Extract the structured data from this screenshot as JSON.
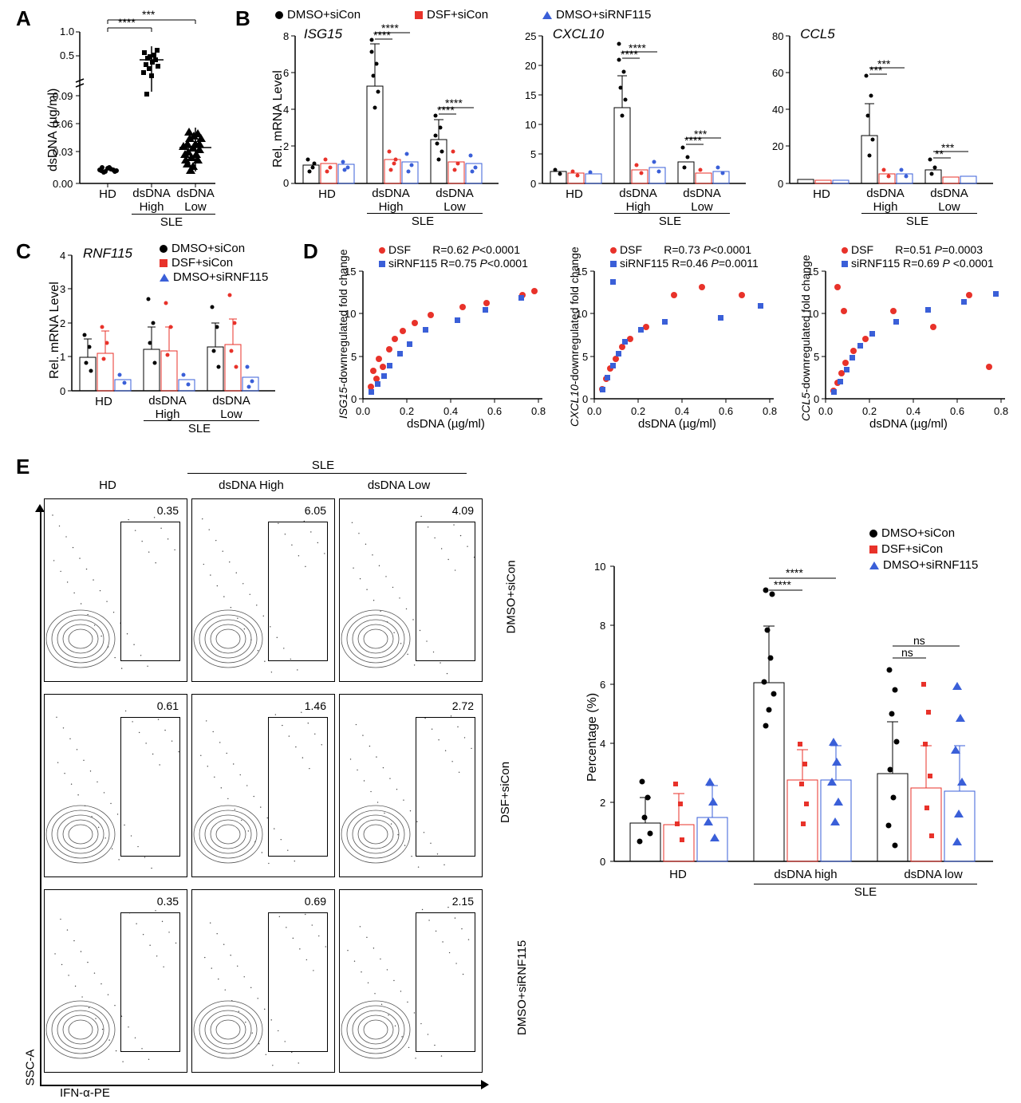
{
  "colors": {
    "black": "#000000",
    "red": "#e8322a",
    "blue": "#3a5fd8",
    "white": "#ffffff",
    "gray": "#888888"
  },
  "panels": {
    "A": {
      "label": "A",
      "y_label": "dsDNA (µg/ml)",
      "groups": [
        "HD",
        "dsDNA\nHigh",
        "dsDNA\nLow"
      ],
      "subgroup": "SLE",
      "sig": [
        "****",
        "***"
      ]
    },
    "B": {
      "label": "B",
      "legend": [
        "DMSO+siCon",
        "DSF+siCon",
        "DMSO+siRNF115"
      ],
      "charts": [
        {
          "title": "ISG15",
          "y_label": "Rel. mRNA Level",
          "ymax": 8,
          "sig": [
            "****",
            "****",
            "****",
            "****"
          ]
        },
        {
          "title": "CXCL10",
          "y_label": "",
          "ymax": 25,
          "sig": [
            "****",
            "****",
            "****",
            "***"
          ]
        },
        {
          "title": "CCL5",
          "y_label": "",
          "ymax": 80,
          "sig": [
            "***",
            "***",
            "**",
            "***"
          ]
        }
      ],
      "groups": [
        "HD",
        "dsDNA\nHigh",
        "dsDNA\nLow"
      ],
      "subgroup": "SLE"
    },
    "C": {
      "label": "C",
      "title": "RNF115",
      "y_label": "Rel. mRNA Level",
      "legend": [
        "DMSO+siCon",
        "DSF+siCon",
        "DMSO+siRNF115"
      ],
      "groups": [
        "HD",
        "dsDNA\nHigh",
        "dsDNA\nLow"
      ],
      "subgroup": "SLE"
    },
    "D": {
      "label": "D",
      "x_label": "dsDNA (µg/ml)",
      "charts": [
        {
          "y_label": "ISG15-downregulated fold change",
          "dsf": {
            "R": "0.62",
            "P": "<0.0001"
          },
          "si": {
            "R": "0.75",
            "P": "<0.0001"
          }
        },
        {
          "y_label": "CXCL10-downregulated fold change",
          "dsf": {
            "R": "0.73",
            "P": "<0.0001"
          },
          "si": {
            "R": "0.46",
            "P": "=0.0011"
          }
        },
        {
          "y_label": "CCL5-downregulated fold change",
          "dsf": {
            "R": "0.51",
            "P": "=0.0003"
          },
          "si": {
            "R": "0.69",
            "P": "<0.0001"
          }
        }
      ],
      "legend": [
        "DSF",
        "siRNF115"
      ]
    },
    "E": {
      "label": "E",
      "col_headers": [
        "HD",
        "dsDNA High",
        "dsDNA Low"
      ],
      "col_super": "SLE",
      "row_labels": [
        "DMSO+siCon",
        "DSF+siCon",
        "DMSO+siRNF115"
      ],
      "values": [
        [
          0.35,
          6.05,
          4.09
        ],
        [
          0.61,
          1.46,
          2.72
        ],
        [
          0.35,
          0.69,
          2.15
        ]
      ],
      "y_axis": "SSC-A",
      "x_axis": "IFN-α-PE",
      "bar": {
        "y_label": "Percentage (%)",
        "groups": [
          "HD",
          "dsDNA high",
          "dsDNA low"
        ],
        "subgroup": "SLE",
        "sig": [
          "****",
          "****",
          "ns",
          "ns"
        ],
        "legend": [
          "DMSO+siCon",
          "DSF+siCon",
          "DMSO+siRNF115"
        ]
      }
    }
  }
}
